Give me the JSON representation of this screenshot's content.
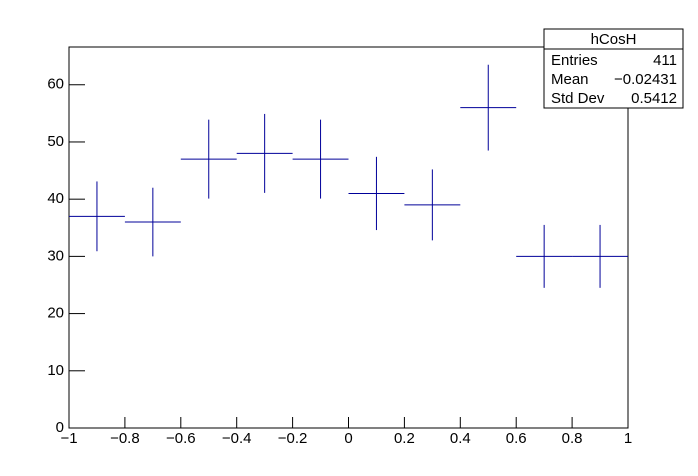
{
  "chart_data": {
    "type": "histogram",
    "bins": [
      -1,
      -0.8,
      -0.6,
      -0.4,
      -0.2,
      0,
      0.2,
      0.4,
      0.6,
      0.8,
      1
    ],
    "values": [
      37,
      36,
      47,
      48,
      47,
      41,
      39,
      56,
      30,
      30
    ],
    "errors": [
      6.1,
      6.0,
      6.9,
      6.9,
      6.9,
      6.4,
      6.2,
      7.5,
      5.5,
      5.5
    ],
    "color": "#000099",
    "xlim": [
      -1,
      1
    ],
    "xticks": [
      {
        "value": -1,
        "label": "−1"
      },
      {
        "value": -0.8,
        "label": "−0.8"
      },
      {
        "value": -0.6,
        "label": "−0.6"
      },
      {
        "value": -0.4,
        "label": "−0.4"
      },
      {
        "value": -0.2,
        "label": "−0.2"
      },
      0,
      0.2,
      0.4,
      0.6,
      0.8,
      1
    ],
    "ylim": [
      0,
      66.6
    ],
    "yticks": [
      0,
      10,
      20,
      30,
      40,
      50,
      60
    ],
    "stats": {
      "title": "hCosH",
      "rows": [
        [
          "Entries",
          "411"
        ],
        [
          "Mean",
          "−0.02431"
        ],
        [
          "Std Dev",
          "0.5412"
        ]
      ]
    }
  }
}
